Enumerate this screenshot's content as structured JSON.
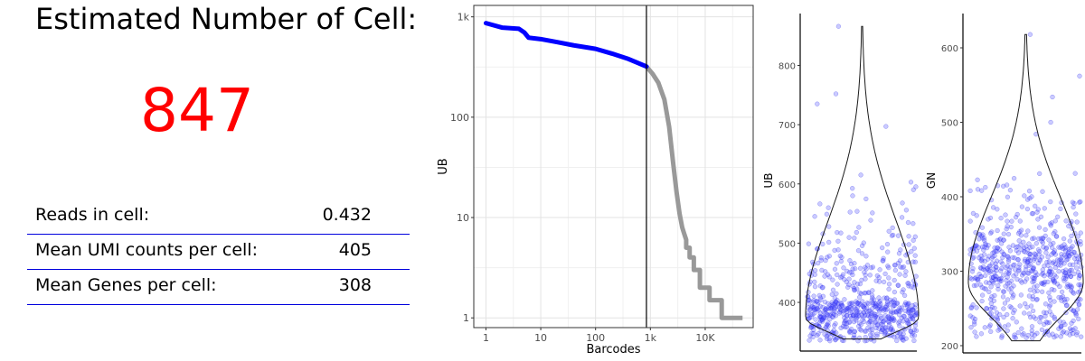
{
  "summary": {
    "title": "Estimated Number of Cell:",
    "estimated_cells": "847",
    "stats": [
      {
        "label": "Reads in cell:",
        "value": "0.432"
      },
      {
        "label": "Mean UMI counts per cell:",
        "value": "405"
      },
      {
        "label": "Mean Genes per cell:",
        "value": "308"
      }
    ]
  },
  "colors": {
    "accent": "#ff0000",
    "rule": "#0000dd",
    "cells": "#0000ff",
    "background": "#999999",
    "violin_points": "#4444ff"
  },
  "chart_data": [
    {
      "type": "line",
      "xlabel": "Barcodes",
      "ylabel": "UB",
      "x_scale": "log10",
      "y_scale": "log10",
      "xlim": [
        0.6,
        75000
      ],
      "ylim": [
        0.8,
        1300
      ],
      "x_ticks": [
        {
          "value": 1,
          "label": "1"
        },
        {
          "value": 10,
          "label": "10"
        },
        {
          "value": 100,
          "label": "100"
        },
        {
          "value": 1000,
          "label": "1k"
        },
        {
          "value": 10000,
          "label": "10K"
        }
      ],
      "y_ticks": [
        {
          "value": 1,
          "label": "1"
        },
        {
          "value": 10,
          "label": "10"
        },
        {
          "value": 100,
          "label": "100"
        },
        {
          "value": 1000,
          "label": "1k"
        }
      ],
      "vline": 847,
      "grid": true,
      "series": [
        {
          "color": "#0000ff",
          "x": [
            1,
            2,
            4,
            5,
            6,
            10,
            20,
            40,
            100,
            200,
            400,
            847
          ],
          "y": [
            866,
            780,
            760,
            700,
            620,
            600,
            560,
            520,
            480,
            430,
            380,
            320
          ]
        },
        {
          "color": "#999999",
          "x": [
            847,
            1100,
            1400,
            1800,
            2200,
            2600,
            3000,
            3400,
            3800,
            4100,
            4500,
            4500,
            5200,
            5200,
            6200,
            6200,
            8000,
            8000,
            12000,
            12000,
            20000,
            20000,
            48000
          ],
          "y": [
            320,
            270,
            220,
            150,
            80,
            35,
            18,
            11,
            8,
            7,
            6,
            5,
            5,
            4,
            4,
            3,
            3,
            2,
            2,
            1.5,
            1.5,
            1,
            1
          ]
        }
      ]
    },
    {
      "type": "violin",
      "ylabel": "UB",
      "ylim": [
        330,
        880
      ],
      "y_ticks": [
        400,
        500,
        600,
        700,
        800
      ],
      "median": 375,
      "outliers": [
        866,
        752,
        735,
        697,
        615,
        603
      ]
    },
    {
      "type": "violin",
      "ylabel": "GN",
      "ylim": [
        200,
        640
      ],
      "y_ticks": [
        200,
        300,
        400,
        500,
        600
      ],
      "median": 285,
      "outliers": [
        618,
        562,
        534,
        500,
        484
      ]
    }
  ]
}
